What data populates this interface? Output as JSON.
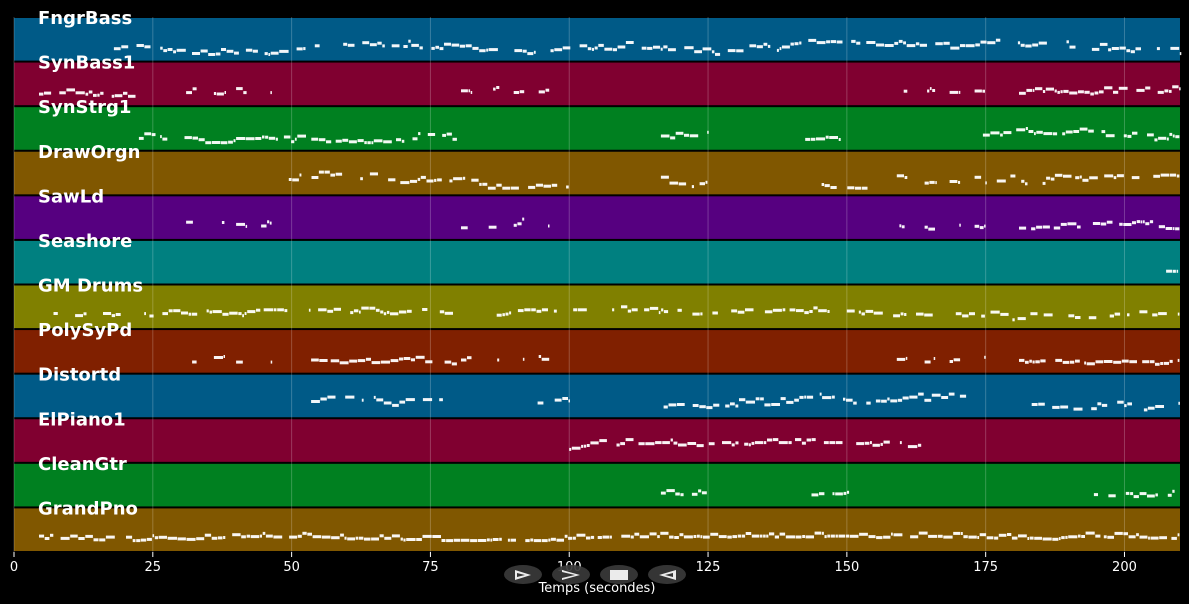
{
  "chart_data": {
    "type": "piano-roll",
    "xlabel": "Temps (secondes)",
    "xlim": [
      0,
      210
    ],
    "xticks": [
      0,
      25,
      50,
      75,
      100,
      125,
      150,
      175,
      200
    ],
    "grid": true,
    "tracks": [
      {
        "name": "FngrBass",
        "color": "#005a87",
        "density": 0.8,
        "spread": 0.35,
        "segments": [
          [
            18,
            210
          ]
        ]
      },
      {
        "name": "SynBass1",
        "color": "#800030",
        "density": 0.8,
        "spread": 0.2,
        "segments": [
          [
            4.5,
            22
          ],
          [
            31,
            33
          ],
          [
            36,
            38
          ],
          [
            40,
            42
          ],
          [
            44.5,
            46.5
          ],
          [
            80.5,
            82.5
          ],
          [
            85.5,
            87.5
          ],
          [
            90,
            92
          ],
          [
            94.5,
            96.5
          ],
          [
            159,
            161
          ],
          [
            164,
            166
          ],
          [
            168.5,
            170.5
          ],
          [
            173,
            175
          ],
          [
            181,
            210
          ]
        ]
      },
      {
        "name": "SynStrg1",
        "color": "#008020",
        "density": 0.85,
        "spread": 0.3,
        "segments": [
          [
            22.5,
            80
          ],
          [
            116.5,
            125
          ],
          [
            142.5,
            149
          ],
          [
            174.5,
            210
          ]
        ]
      },
      {
        "name": "DrawOrgn",
        "color": "#805700",
        "density": 0.75,
        "spread": 0.35,
        "segments": [
          [
            49.5,
            100
          ],
          [
            116.5,
            125
          ],
          [
            142.5,
            156
          ],
          [
            159,
            161
          ],
          [
            164,
            166
          ],
          [
            168.5,
            170.5
          ],
          [
            173,
            175
          ],
          [
            177,
            210
          ]
        ]
      },
      {
        "name": "SawLd",
        "color": "#560080",
        "density": 0.8,
        "spread": 0.25,
        "segments": [
          [
            31,
            33
          ],
          [
            36,
            38
          ],
          [
            40,
            42
          ],
          [
            44.5,
            46.5
          ],
          [
            80.5,
            82.5
          ],
          [
            85.5,
            87.5
          ],
          [
            90,
            92
          ],
          [
            94.5,
            96.5
          ],
          [
            159,
            161
          ],
          [
            164,
            166
          ],
          [
            168.5,
            170.5
          ],
          [
            173,
            175
          ],
          [
            181,
            210
          ]
        ]
      },
      {
        "name": "Seashore",
        "color": "#008080",
        "density": 1,
        "spread": 0.05,
        "segments": [
          [
            207.5,
            209.5
          ]
        ]
      },
      {
        "name": "GM Drums",
        "color": "#808000",
        "density": 0.7,
        "spread": 0.3,
        "segments": [
          [
            6,
            8
          ],
          [
            11,
            210
          ]
        ]
      },
      {
        "name": "PolySyPd",
        "color": "#802000",
        "density": 0.8,
        "spread": 0.25,
        "segments": [
          [
            31,
            33
          ],
          [
            36,
            38
          ],
          [
            40,
            42
          ],
          [
            44.5,
            46.5
          ],
          [
            53.5,
            80
          ],
          [
            80.5,
            82.5
          ],
          [
            85.5,
            87.5
          ],
          [
            90,
            92
          ],
          [
            94.5,
            96.5
          ],
          [
            159,
            161
          ],
          [
            164,
            166
          ],
          [
            168.5,
            170.5
          ],
          [
            173,
            175
          ],
          [
            181,
            210
          ]
        ]
      },
      {
        "name": "Distortd",
        "color": "#005a87",
        "density": 0.75,
        "spread": 0.4,
        "segments": [
          [
            53.5,
            80
          ],
          [
            93.5,
            100
          ],
          [
            117,
            172
          ],
          [
            181,
            210
          ]
        ]
      },
      {
        "name": "ElPiano1",
        "color": "#800030",
        "density": 0.85,
        "spread": 0.35,
        "segments": [
          [
            100,
            160
          ],
          [
            161,
            163.5
          ]
        ]
      },
      {
        "name": "CleanGtr",
        "color": "#008020",
        "density": 0.85,
        "spread": 0.15,
        "segments": [
          [
            116.5,
            125
          ],
          [
            142.5,
            150.5
          ],
          [
            194.5,
            210
          ]
        ]
      },
      {
        "name": "GrandPno",
        "color": "#805700",
        "density": 0.95,
        "spread": 0.12,
        "segments": [
          [
            4.5,
            210
          ]
        ]
      }
    ]
  },
  "controls": [
    {
      "name": "play-button",
      "icon": "play-icon"
    },
    {
      "name": "forward-button",
      "icon": "forward-icon"
    },
    {
      "name": "stop-button",
      "icon": "stop-icon"
    },
    {
      "name": "rewind-button",
      "icon": "rewind-icon"
    }
  ]
}
